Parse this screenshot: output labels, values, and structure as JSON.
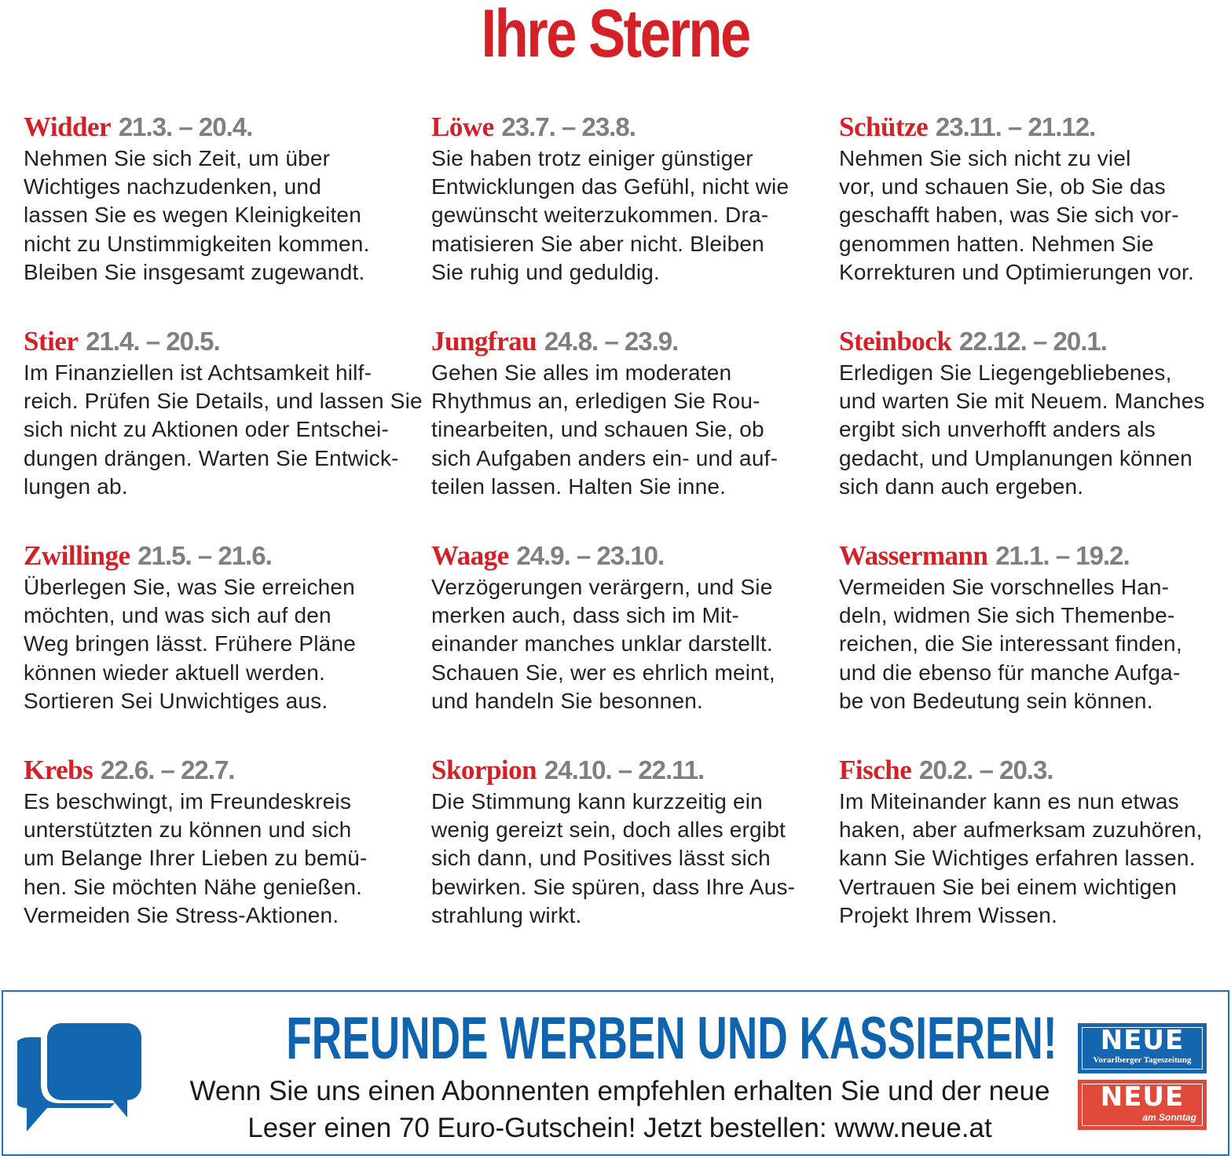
{
  "title": "Ihre Sterne",
  "columns": [
    [
      {
        "name": "Widder",
        "dates": "21.3. – 20.4.",
        "lines": [
          "Nehmen Sie sich Zeit, um über",
          "Wichtiges nachzudenken, und",
          "lassen Sie es wegen Kleinigkeiten",
          "nicht zu Unstimmigkeiten kommen.",
          "Bleiben Sie insgesamt zugewandt."
        ]
      },
      {
        "name": "Stier",
        "dates": "21.4. – 20.5.",
        "lines": [
          "Im Finanziellen ist Achtsamkeit hilf-",
          "reich. Prüfen Sie Details, und lassen Sie",
          "sich nicht zu Aktionen oder Entschei-",
          "dungen drängen. Warten Sie Entwick-",
          "lungen ab."
        ]
      },
      {
        "name": "Zwillinge",
        "dates": "21.5. – 21.6.",
        "lines": [
          "Überlegen Sie, was Sie erreichen",
          "möchten, und was sich auf den",
          "Weg bringen lässt. Frühere Pläne",
          "können wieder aktuell werden.",
          "Sortieren Sei Unwichtiges aus."
        ]
      },
      {
        "name": "Krebs",
        "dates": "22.6. – 22.7.",
        "lines": [
          "Es beschwingt, im Freundeskreis",
          "unterstützten zu können und sich",
          "um Belange Ihrer Lieben zu bemü-",
          "hen. Sie möchten Nähe genießen.",
          "Vermeiden Sie Stress-Aktionen."
        ]
      }
    ],
    [
      {
        "name": "Löwe",
        "dates": "23.7. – 23.8.",
        "lines": [
          "Sie haben trotz einiger günstiger",
          "Entwicklungen das Gefühl, nicht wie",
          "gewünscht weiterzukommen. Dra-",
          "matisieren Sie aber nicht. Bleiben",
          "Sie ruhig und geduldig."
        ]
      },
      {
        "name": "Jungfrau",
        "dates": "24.8. – 23.9.",
        "lines": [
          "Gehen Sie alles im moderaten",
          "Rhythmus an, erledigen Sie Rou-",
          "tinearbeiten, und schauen Sie, ob",
          "sich Aufgaben anders ein- und auf-",
          "teilen lassen. Halten Sie inne."
        ]
      },
      {
        "name": "Waage",
        "dates": "24.9. – 23.10.",
        "lines": [
          "Verzögerungen verärgern, und Sie",
          "merken auch, dass sich im Mit-",
          "einander manches unklar darstellt.",
          "Schauen Sie, wer es ehrlich meint,",
          "und handeln Sie besonnen."
        ]
      },
      {
        "name": "Skorpion",
        "dates": "24.10. – 22.11.",
        "lines": [
          "Die Stimmung kann kurzzeitig ein",
          "wenig gereizt sein, doch alles ergibt",
          "sich dann, und Positives lässt sich",
          "bewirken. Sie spüren, dass Ihre Aus-",
          "strahlung wirkt."
        ]
      }
    ],
    [
      {
        "name": "Schütze",
        "dates": "23.11. – 21.12.",
        "lines": [
          "Nehmen Sie sich nicht zu viel",
          "vor, und schauen Sie, ob Sie das",
          "geschafft haben, was Sie sich vor-",
          "genommen hatten. Nehmen Sie",
          "Korrekturen und Optimierungen vor."
        ]
      },
      {
        "name": "Steinbock",
        "dates": "22.12. – 20.1.",
        "lines": [
          "Erledigen Sie Liegengebliebenes,",
          "und warten Sie mit Neuem. Manches",
          "ergibt sich unverhofft anders als",
          "gedacht, und Umplanungen können",
          "sich dann auch ergeben."
        ]
      },
      {
        "name": "Wassermann",
        "dates": "21.1. – 19.2.",
        "lines": [
          "Vermeiden Sie vorschnelles Han-",
          "deln, widmen Sie sich Themenbe-",
          "reichen, die Sie interessant finden,",
          "und die ebenso für manche Aufga-",
          "be von Bedeutung sein können."
        ]
      },
      {
        "name": "Fische",
        "dates": "20.2. – 20.3.",
        "lines": [
          "Im Miteinander kann es nun etwas",
          "haken, aber aufmerksam zuzuhören,",
          "kann Sie Wichtiges erfahren lassen.",
          "Vertrauen Sie bei einem wichtigen",
          "Projekt Ihrem Wissen."
        ]
      }
    ]
  ],
  "banner": {
    "icon": "speech-bubbles-icon",
    "headline": "FREUNDE WERBEN UND KASSIEREN!",
    "line1": "Wenn Sie uns einen Abonnenten empfehlen erhalten Sie und der neue",
    "line2": "Leser einen 70 Euro-Gutschein! Jetzt bestellen: www.neue.at",
    "logo1": {
      "name": "NEUE",
      "sub": "Vorarlberger Tageszeitung",
      "color": "#1466b0"
    },
    "logo2": {
      "name": "NEUE",
      "sub": "am Sonntag",
      "color": "#e04a3a"
    },
    "accent": "#0e64ae"
  },
  "colors": {
    "title": "#d42027",
    "dates": "#7f7f7f"
  }
}
